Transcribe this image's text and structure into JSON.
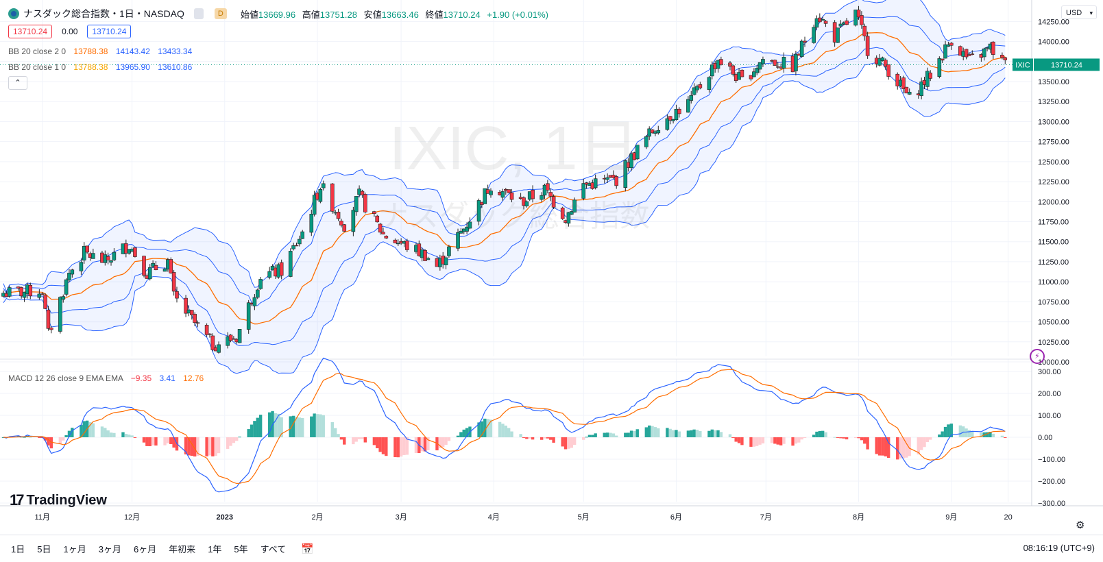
{
  "header": {
    "title": "ナスダック総合指数・1日・NASDAQ",
    "interval_badge": "D",
    "ohlc": [
      {
        "label": "始値",
        "value": "13669.96"
      },
      {
        "label": "高値",
        "value": "13751.28"
      },
      {
        "label": "安値",
        "value": "13663.46"
      },
      {
        "label": "終値",
        "value": "13710.24"
      }
    ],
    "change": "+1.90 (+0.01%)",
    "sell_price": "13710.24",
    "spread": "0.00",
    "buy_price": "13710.24"
  },
  "indicators": {
    "bb1": {
      "label": "BB 20 close 2 0",
      "basis": "13788.38",
      "upper": "14143.42",
      "lower": "13433.34"
    },
    "bb2": {
      "label": "BB 20 close 1 0",
      "basis": "13788.38",
      "upper": "13965.90",
      "lower": "13610.86"
    },
    "macd": {
      "label": "MACD 12 26 close 9 EMA EMA",
      "hist": "−9.35",
      "macd": "3.41",
      "signal": "12.76"
    }
  },
  "currency": "USD",
  "watermark": {
    "symbol": "IXIC, 1日",
    "name": "ナスダック総合指数"
  },
  "price_tag": {
    "symbol": "IXIC",
    "value": "13710.24"
  },
  "brand": "TradingView",
  "time_ranges": [
    "1日",
    "5日",
    "1ヶ月",
    "3ヶ月",
    "6ヶ月",
    "年初来",
    "1年",
    "5年",
    "すべて"
  ],
  "clock": "08:16:19 (UTC+9)",
  "colors": {
    "up": "#089981",
    "down": "#f23645",
    "basis": "#ff6d00",
    "band": "#2962ff",
    "signal": "#ff6d00"
  },
  "chart_data": {
    "type": "candlestick",
    "x_ticks": [
      "11月",
      "12月",
      "2023",
      "2月",
      "3月",
      "4月",
      "5月",
      "6月",
      "7月",
      "8月",
      "9月",
      "20"
    ],
    "price_ticks": [
      "14250.00",
      "14000.00",
      "13750.00",
      "13500.00",
      "13250.00",
      "13000.00",
      "12750.00",
      "12500.00",
      "12250.00",
      "12000.00",
      "11750.00",
      "11500.00",
      "11250.00",
      "11000.00",
      "10750.00",
      "10500.00",
      "10250.00",
      "10000.00"
    ],
    "ylim": [
      10000,
      14450
    ],
    "macd_ticks": [
      "300.00",
      "200.00",
      "100.00",
      "0.00",
      "−100.00",
      "−200.00",
      "−300.00"
    ],
    "macd_ylim": [
      -300,
      300
    ],
    "close_series": [
      {
        "date": "2022-10-21",
        "close": 10860
      },
      {
        "date": "2022-11-01",
        "close": 10890
      },
      {
        "date": "2022-11-03",
        "close": 10340
      },
      {
        "date": "2022-11-10",
        "close": 11110
      },
      {
        "date": "2022-11-15",
        "close": 11360
      },
      {
        "date": "2022-11-22",
        "close": 11250
      },
      {
        "date": "2022-11-30",
        "close": 11470
      },
      {
        "date": "2022-12-06",
        "close": 11110
      },
      {
        "date": "2022-12-13",
        "close": 11260
      },
      {
        "date": "2022-12-15",
        "close": 10810
      },
      {
        "date": "2022-12-22",
        "close": 10480
      },
      {
        "date": "2022-12-28",
        "close": 10210
      },
      {
        "date": "2023-01-05",
        "close": 10310
      },
      {
        "date": "2023-01-13",
        "close": 11080
      },
      {
        "date": "2023-01-20",
        "close": 11140
      },
      {
        "date": "2023-01-27",
        "close": 11620
      },
      {
        "date": "2023-02-02",
        "close": 12200
      },
      {
        "date": "2023-02-10",
        "close": 11720
      },
      {
        "date": "2023-02-15",
        "close": 12070
      },
      {
        "date": "2023-02-23",
        "close": 11590
      },
      {
        "date": "2023-03-02",
        "close": 11460
      },
      {
        "date": "2023-03-09",
        "close": 11340
      },
      {
        "date": "2023-03-13",
        "close": 11190
      },
      {
        "date": "2023-03-22",
        "close": 11670
      },
      {
        "date": "2023-03-31",
        "close": 12220
      },
      {
        "date": "2023-04-10",
        "close": 11990
      },
      {
        "date": "2023-04-18",
        "close": 12150
      },
      {
        "date": "2023-04-25",
        "close": 11800
      },
      {
        "date": "2023-05-01",
        "close": 12210
      },
      {
        "date": "2023-05-12",
        "close": 12280
      },
      {
        "date": "2023-05-19",
        "close": 12650
      },
      {
        "date": "2023-05-26",
        "close": 12980
      },
      {
        "date": "2023-06-05",
        "close": 13230
      },
      {
        "date": "2023-06-15",
        "close": 13780
      },
      {
        "date": "2023-06-23",
        "close": 13500
      },
      {
        "date": "2023-06-30",
        "close": 13780
      },
      {
        "date": "2023-07-10",
        "close": 13690
      },
      {
        "date": "2023-07-18",
        "close": 14350
      },
      {
        "date": "2023-07-24",
        "close": 14060
      },
      {
        "date": "2023-07-31",
        "close": 14350
      },
      {
        "date": "2023-08-04",
        "close": 13910
      },
      {
        "date": "2023-08-11",
        "close": 13650
      },
      {
        "date": "2023-08-18",
        "close": 13290
      },
      {
        "date": "2023-08-25",
        "close": 13590
      },
      {
        "date": "2023-09-01",
        "close": 14030
      },
      {
        "date": "2023-09-07",
        "close": 13750
      },
      {
        "date": "2023-09-14",
        "close": 13920
      },
      {
        "date": "2023-09-19",
        "close": 13710
      }
    ]
  }
}
